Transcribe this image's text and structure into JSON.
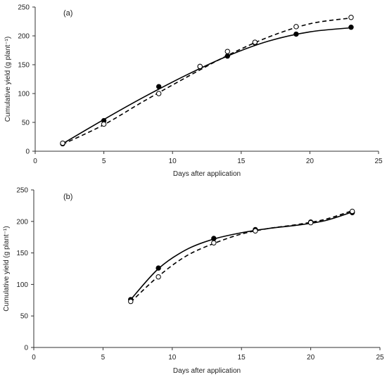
{
  "chart_data": [
    {
      "type": "scatter",
      "panel_label": "(a)",
      "xlabel": "Days after application",
      "ylabel": "Cumulative yield (g plant⁻¹)",
      "xlim": [
        0,
        25
      ],
      "ylim": [
        0,
        250
      ],
      "xticks": [
        0,
        5,
        10,
        15,
        20,
        25
      ],
      "yticks": [
        0,
        50,
        100,
        150,
        200,
        250
      ],
      "grid": false,
      "series": [
        {
          "marker": "filled-circle",
          "line": "solid",
          "x": [
            2,
            5,
            9,
            12,
            14,
            16,
            19,
            23
          ],
          "y": [
            13,
            53,
            112,
            147,
            165,
            188,
            203,
            215
          ],
          "fit": [
            [
              2,
              13
            ],
            [
              5,
              55
            ],
            [
              8,
              95
            ],
            [
              11,
              132
            ],
            [
              14,
              165
            ],
            [
              17,
              191
            ],
            [
              20,
              207
            ],
            [
              23,
              214
            ]
          ]
        },
        {
          "marker": "open-circle",
          "line": "dashed",
          "x": [
            2,
            5,
            9,
            12,
            14,
            16,
            19,
            23
          ],
          "y": [
            14,
            47,
            100,
            147,
            173,
            189,
            216,
            232
          ],
          "fit": [
            [
              2,
              12
            ],
            [
              5,
              46
            ],
            [
              8,
              88
            ],
            [
              11,
              128
            ],
            [
              14,
              166
            ],
            [
              17,
              198
            ],
            [
              20,
              221
            ],
            [
              23,
              231
            ]
          ]
        }
      ]
    },
    {
      "type": "scatter",
      "panel_label": "(b)",
      "xlabel": "Days after application",
      "ylabel": "Cumulative yield (g plant⁻¹)",
      "xlim": [
        0,
        25
      ],
      "ylim": [
        0,
        250
      ],
      "xticks": [
        0,
        5,
        10,
        15,
        20,
        25
      ],
      "yticks": [
        0,
        50,
        100,
        150,
        200,
        250
      ],
      "grid": false,
      "series": [
        {
          "marker": "filled-circle",
          "line": "solid",
          "x": [
            7,
            9,
            13,
            16,
            20,
            23
          ],
          "y": [
            76,
            126,
            173,
            187,
            199,
            214
          ],
          "fit": [
            [
              7,
              76
            ],
            [
              9,
              125
            ],
            [
              11,
              155
            ],
            [
              13,
              172
            ],
            [
              15,
              182
            ],
            [
              17,
              189
            ],
            [
              19,
              194
            ],
            [
              21,
              201
            ],
            [
              23,
              215
            ]
          ]
        },
        {
          "marker": "open-circle",
          "line": "dashed",
          "x": [
            7,
            9,
            13,
            16,
            20,
            23
          ],
          "y": [
            73,
            112,
            166,
            185,
            198,
            216
          ],
          "fit": [
            [
              7,
              72
            ],
            [
              9,
              113
            ],
            [
              11,
              145
            ],
            [
              13,
              165
            ],
            [
              15,
              180
            ],
            [
              17,
              189
            ],
            [
              19,
              195
            ],
            [
              21,
              203
            ],
            [
              23,
              217
            ]
          ]
        }
      ]
    }
  ]
}
